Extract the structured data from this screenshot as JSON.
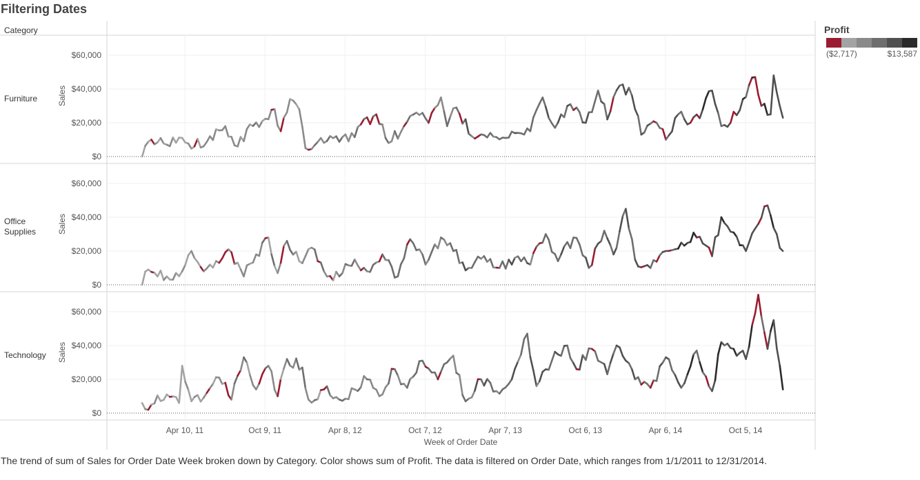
{
  "title": "Filtering Dates",
  "caption": "The trend of sum of Sales for Order Date Week broken down by Category.  Color shows sum of Profit. The data is filtered on Order Date, which ranges from 1/1/2011 to 12/31/2014.",
  "colors": {
    "negative": "#9b1b30",
    "scale": [
      "#9b1b30",
      "#a3a3a3",
      "#8a8a8a",
      "#6e6e6e",
      "#505050",
      "#2a2a2a"
    ]
  },
  "chart_data": {
    "type": "line",
    "title": "Filtering Dates",
    "row_header": "Category",
    "xlabel": "Week of Order Date",
    "ylabel": "Sales",
    "x_ticks": [
      "Apr 10, 11",
      "Oct 9, 11",
      "Apr 8, 12",
      "Oct 7, 12",
      "Apr 7, 13",
      "Oct 6, 13",
      "Apr 6, 14",
      "Oct 5, 14"
    ],
    "y_ticks": [
      "$0",
      "$20,000",
      "$40,000",
      "$60,000"
    ],
    "ylim": [
      0,
      60000
    ],
    "x_start": "2011-01-03",
    "x_end": "2014-12-29",
    "grid": true,
    "legend": {
      "title": "Profit",
      "min_label": "($2,717)",
      "max_label": "$13,587",
      "placement": "top-right"
    },
    "series": [
      {
        "name": "Furniture",
        "keypoints": [
          {
            "date": "2011-01-03",
            "sales": 0
          },
          {
            "date": "2011-01-24",
            "sales": 10000
          },
          {
            "date": "2011-02-28",
            "sales": 7000
          },
          {
            "date": "2011-04-04",
            "sales": 11000
          },
          {
            "date": "2011-05-02",
            "sales": 6000
          },
          {
            "date": "2011-06-06",
            "sales": 12000
          },
          {
            "date": "2011-07-11",
            "sales": 18000
          },
          {
            "date": "2011-08-08",
            "sales": 6000
          },
          {
            "date": "2011-09-05",
            "sales": 19000
          },
          {
            "date": "2011-10-03",
            "sales": 21000
          },
          {
            "date": "2011-10-31",
            "sales": 28000
          },
          {
            "date": "2011-11-14",
            "sales": 15000
          },
          {
            "date": "2011-12-05",
            "sales": 34000
          },
          {
            "date": "2011-12-26",
            "sales": 28000
          },
          {
            "date": "2012-01-09",
            "sales": 5000
          },
          {
            "date": "2012-02-13",
            "sales": 11000
          },
          {
            "date": "2012-03-19",
            "sales": 12000
          },
          {
            "date": "2012-04-16",
            "sales": 9000
          },
          {
            "date": "2012-05-14",
            "sales": 19000
          },
          {
            "date": "2012-06-18",
            "sales": 25000
          },
          {
            "date": "2012-07-16",
            "sales": 8000
          },
          {
            "date": "2012-08-20",
            "sales": 18000
          },
          {
            "date": "2012-09-17",
            "sales": 26000
          },
          {
            "date": "2012-10-15",
            "sales": 20000
          },
          {
            "date": "2012-11-12",
            "sales": 35000
          },
          {
            "date": "2012-11-26",
            "sales": 18000
          },
          {
            "date": "2012-12-17",
            "sales": 29000
          },
          {
            "date": "2013-01-21",
            "sales": 12000
          },
          {
            "date": "2013-03-04",
            "sales": 14000
          },
          {
            "date": "2013-04-08",
            "sales": 11000
          },
          {
            "date": "2013-05-06",
            "sales": 14000
          },
          {
            "date": "2013-06-03",
            "sales": 15000
          },
          {
            "date": "2013-07-01",
            "sales": 35000
          },
          {
            "date": "2013-07-29",
            "sales": 17000
          },
          {
            "date": "2013-09-02",
            "sales": 31000
          },
          {
            "date": "2013-10-07",
            "sales": 20000
          },
          {
            "date": "2013-11-04",
            "sales": 39000
          },
          {
            "date": "2013-11-25",
            "sales": 22000
          },
          {
            "date": "2013-12-23",
            "sales": 42000
          },
          {
            "date": "2014-01-20",
            "sales": 36000
          },
          {
            "date": "2014-02-10",
            "sales": 13000
          },
          {
            "date": "2014-03-17",
            "sales": 20000
          },
          {
            "date": "2014-04-07",
            "sales": 10000
          },
          {
            "date": "2014-05-05",
            "sales": 25000
          },
          {
            "date": "2014-06-02",
            "sales": 20000
          },
          {
            "date": "2014-06-30",
            "sales": 28000
          },
          {
            "date": "2014-07-21",
            "sales": 39000
          },
          {
            "date": "2014-08-11",
            "sales": 18000
          },
          {
            "date": "2014-09-01",
            "sales": 20000
          },
          {
            "date": "2014-09-29",
            "sales": 34000
          },
          {
            "date": "2014-10-27",
            "sales": 47000
          },
          {
            "date": "2014-11-10",
            "sales": 30000
          },
          {
            "date": "2014-12-01",
            "sales": 25000
          },
          {
            "date": "2014-12-08",
            "sales": 48000
          },
          {
            "date": "2014-12-15",
            "sales": 38000
          },
          {
            "date": "2014-12-29",
            "sales": 23000
          }
        ]
      },
      {
        "name": "Office Supplies",
        "keypoints": [
          {
            "date": "2011-01-03",
            "sales": 0
          },
          {
            "date": "2011-01-17",
            "sales": 9000
          },
          {
            "date": "2011-02-28",
            "sales": 5000
          },
          {
            "date": "2011-04-04",
            "sales": 8000
          },
          {
            "date": "2011-04-25",
            "sales": 20000
          },
          {
            "date": "2011-05-23",
            "sales": 8000
          },
          {
            "date": "2011-06-27",
            "sales": 13000
          },
          {
            "date": "2011-07-18",
            "sales": 21000
          },
          {
            "date": "2011-08-22",
            "sales": 5000
          },
          {
            "date": "2011-09-19",
            "sales": 18000
          },
          {
            "date": "2011-10-17",
            "sales": 28000
          },
          {
            "date": "2011-11-07",
            "sales": 7000
          },
          {
            "date": "2011-11-28",
            "sales": 26000
          },
          {
            "date": "2011-12-26",
            "sales": 14000
          },
          {
            "date": "2012-01-23",
            "sales": 22000
          },
          {
            "date": "2012-02-20",
            "sales": 8000
          },
          {
            "date": "2012-03-26",
            "sales": 5000
          },
          {
            "date": "2012-04-30",
            "sales": 15000
          },
          {
            "date": "2012-05-28",
            "sales": 8000
          },
          {
            "date": "2012-07-02",
            "sales": 18000
          },
          {
            "date": "2012-08-06",
            "sales": 5000
          },
          {
            "date": "2012-09-03",
            "sales": 27000
          },
          {
            "date": "2012-10-08",
            "sales": 12000
          },
          {
            "date": "2012-11-12",
            "sales": 28000
          },
          {
            "date": "2012-12-10",
            "sales": 20000
          },
          {
            "date": "2013-01-14",
            "sales": 10000
          },
          {
            "date": "2013-02-18",
            "sales": 17000
          },
          {
            "date": "2013-03-25",
            "sales": 10000
          },
          {
            "date": "2013-04-29",
            "sales": 16000
          },
          {
            "date": "2013-06-03",
            "sales": 12000
          },
          {
            "date": "2013-07-08",
            "sales": 30000
          },
          {
            "date": "2013-08-05",
            "sales": 14000
          },
          {
            "date": "2013-09-09",
            "sales": 28000
          },
          {
            "date": "2013-10-14",
            "sales": 10000
          },
          {
            "date": "2013-11-18",
            "sales": 32000
          },
          {
            "date": "2013-12-09",
            "sales": 18000
          },
          {
            "date": "2014-01-06",
            "sales": 45000
          },
          {
            "date": "2014-01-27",
            "sales": 15000
          },
          {
            "date": "2014-03-03",
            "sales": 10000
          },
          {
            "date": "2014-04-07",
            "sales": 20000
          },
          {
            "date": "2014-05-12",
            "sales": 25000
          },
          {
            "date": "2014-06-16",
            "sales": 28000
          },
          {
            "date": "2014-07-21",
            "sales": 17000
          },
          {
            "date": "2014-08-11",
            "sales": 40000
          },
          {
            "date": "2014-09-08",
            "sales": 31000
          },
          {
            "date": "2014-10-06",
            "sales": 20000
          },
          {
            "date": "2014-11-03",
            "sales": 36000
          },
          {
            "date": "2014-11-24",
            "sales": 47000
          },
          {
            "date": "2014-12-15",
            "sales": 30000
          },
          {
            "date": "2014-12-29",
            "sales": 20000
          }
        ]
      },
      {
        "name": "Technology",
        "keypoints": [
          {
            "date": "2011-01-03",
            "sales": 6000
          },
          {
            "date": "2011-01-24",
            "sales": 5000
          },
          {
            "date": "2011-02-28",
            "sales": 11000
          },
          {
            "date": "2011-03-28",
            "sales": 6000
          },
          {
            "date": "2011-04-04",
            "sales": 28000
          },
          {
            "date": "2011-04-25",
            "sales": 7000
          },
          {
            "date": "2011-05-30",
            "sales": 12000
          },
          {
            "date": "2011-06-27",
            "sales": 21000
          },
          {
            "date": "2011-07-25",
            "sales": 8000
          },
          {
            "date": "2011-08-22",
            "sales": 33000
          },
          {
            "date": "2011-09-19",
            "sales": 14000
          },
          {
            "date": "2011-10-17",
            "sales": 28000
          },
          {
            "date": "2011-11-07",
            "sales": 10000
          },
          {
            "date": "2011-11-28",
            "sales": 32000
          },
          {
            "date": "2012-01-02",
            "sales": 27000
          },
          {
            "date": "2012-01-16",
            "sales": 8000
          },
          {
            "date": "2012-02-20",
            "sales": 14000
          },
          {
            "date": "2012-03-26",
            "sales": 8000
          },
          {
            "date": "2012-04-30",
            "sales": 14000
          },
          {
            "date": "2012-05-28",
            "sales": 20000
          },
          {
            "date": "2012-06-25",
            "sales": 10000
          },
          {
            "date": "2012-07-30",
            "sales": 26000
          },
          {
            "date": "2012-08-27",
            "sales": 15000
          },
          {
            "date": "2012-10-01",
            "sales": 31000
          },
          {
            "date": "2012-11-05",
            "sales": 20000
          },
          {
            "date": "2012-12-10",
            "sales": 34000
          },
          {
            "date": "2013-01-07",
            "sales": 7000
          },
          {
            "date": "2013-02-11",
            "sales": 20000
          },
          {
            "date": "2013-03-18",
            "sales": 13000
          },
          {
            "date": "2013-04-22",
            "sales": 20000
          },
          {
            "date": "2013-05-27",
            "sales": 47000
          },
          {
            "date": "2013-06-17",
            "sales": 16000
          },
          {
            "date": "2013-07-22",
            "sales": 31000
          },
          {
            "date": "2013-08-26",
            "sales": 40000
          },
          {
            "date": "2013-09-16",
            "sales": 26000
          },
          {
            "date": "2013-10-21",
            "sales": 38000
          },
          {
            "date": "2013-11-25",
            "sales": 23000
          },
          {
            "date": "2013-12-16",
            "sales": 40000
          },
          {
            "date": "2014-01-27",
            "sales": 20000
          },
          {
            "date": "2014-03-03",
            "sales": 15000
          },
          {
            "date": "2014-04-07",
            "sales": 33000
          },
          {
            "date": "2014-05-12",
            "sales": 15000
          },
          {
            "date": "2014-06-16",
            "sales": 37000
          },
          {
            "date": "2014-07-21",
            "sales": 13000
          },
          {
            "date": "2014-08-11",
            "sales": 42000
          },
          {
            "date": "2014-09-08",
            "sales": 38000
          },
          {
            "date": "2014-10-06",
            "sales": 32000
          },
          {
            "date": "2014-10-20",
            "sales": 52000
          },
          {
            "date": "2014-11-03",
            "sales": 70000
          },
          {
            "date": "2014-11-24",
            "sales": 38000
          },
          {
            "date": "2014-12-08",
            "sales": 55000
          },
          {
            "date": "2014-12-29",
            "sales": 14000
          }
        ]
      }
    ]
  }
}
